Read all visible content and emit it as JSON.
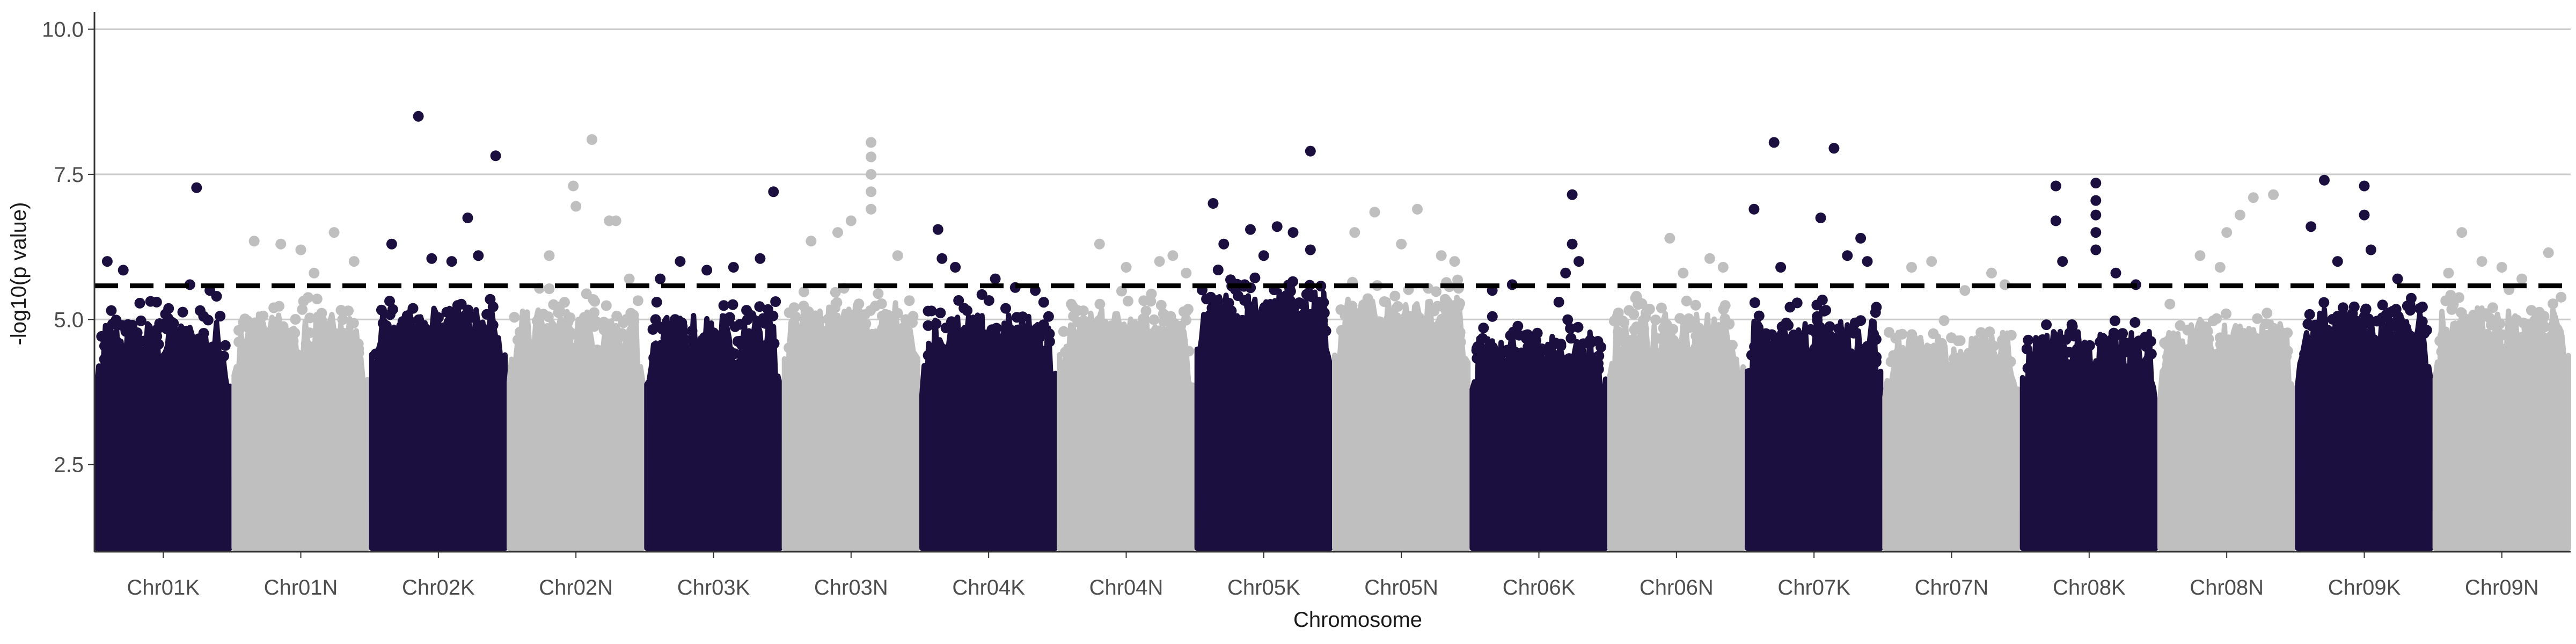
{
  "chart_data": {
    "type": "scatter",
    "subtype": "manhattan",
    "title": "",
    "xlabel": "Chromosome",
    "ylabel": "-log10(p value)",
    "ylim": [
      1.0,
      10.3
    ],
    "yticks": [
      2.5,
      5.0,
      7.5,
      10.0
    ],
    "ytick_labels": [
      "2.5",
      "5.0",
      "7.5",
      "10.0"
    ],
    "grid": "horizontal major lines",
    "legend": "none",
    "threshold": {
      "value": 5.58,
      "style": "dashed",
      "color": "#000000"
    },
    "colors": {
      "K": "#1b0f40",
      "N": "#bfbfbf"
    },
    "categories": [
      "Chr01K",
      "Chr01N",
      "Chr02K",
      "Chr02N",
      "Chr03K",
      "Chr03N",
      "Chr04K",
      "Chr04N",
      "Chr05K",
      "Chr05N",
      "Chr06K",
      "Chr06N",
      "Chr07K",
      "Chr07N",
      "Chr08K",
      "Chr08N",
      "Chr09K",
      "Chr09N"
    ],
    "chromosomes": [
      {
        "name": "Chr01K",
        "color": "#1b0f40",
        "bulk_top": 4.8,
        "notable_points": [
          {
            "x": 0.08,
            "y": 6.0
          },
          {
            "x": 0.2,
            "y": 5.85
          },
          {
            "x": 0.45,
            "y": 5.3
          },
          {
            "x": 0.7,
            "y": 5.6
          },
          {
            "x": 0.85,
            "y": 5.5
          },
          {
            "x": 0.75,
            "y": 7.27
          },
          {
            "x": 0.9,
            "y": 5.4
          }
        ]
      },
      {
        "name": "Chr01N",
        "color": "#bfbfbf",
        "bulk_top": 4.9,
        "notable_points": [
          {
            "x": 0.15,
            "y": 6.35
          },
          {
            "x": 0.35,
            "y": 6.3
          },
          {
            "x": 0.5,
            "y": 6.2
          },
          {
            "x": 0.75,
            "y": 6.5
          },
          {
            "x": 0.9,
            "y": 6.0
          },
          {
            "x": 0.6,
            "y": 5.8
          }
        ]
      },
      {
        "name": "Chr02K",
        "color": "#1b0f40",
        "bulk_top": 5.0,
        "notable_points": [
          {
            "x": 0.15,
            "y": 6.3
          },
          {
            "x": 0.35,
            "y": 8.5
          },
          {
            "x": 0.6,
            "y": 6.0
          },
          {
            "x": 0.72,
            "y": 6.75
          },
          {
            "x": 0.8,
            "y": 6.1
          },
          {
            "x": 0.93,
            "y": 7.82
          },
          {
            "x": 0.45,
            "y": 6.05
          }
        ]
      },
      {
        "name": "Chr02N",
        "color": "#bfbfbf",
        "bulk_top": 5.0,
        "notable_points": [
          {
            "x": 0.48,
            "y": 7.3
          },
          {
            "x": 0.5,
            "y": 6.95
          },
          {
            "x": 0.62,
            "y": 8.1
          },
          {
            "x": 0.75,
            "y": 6.7
          },
          {
            "x": 0.8,
            "y": 6.7
          },
          {
            "x": 0.3,
            "y": 6.1
          },
          {
            "x": 0.9,
            "y": 5.7
          }
        ]
      },
      {
        "name": "Chr03K",
        "color": "#1b0f40",
        "bulk_top": 4.9,
        "notable_points": [
          {
            "x": 0.25,
            "y": 6.0
          },
          {
            "x": 0.45,
            "y": 5.85
          },
          {
            "x": 0.65,
            "y": 5.9
          },
          {
            "x": 0.85,
            "y": 6.05
          },
          {
            "x": 0.95,
            "y": 7.2
          },
          {
            "x": 0.1,
            "y": 5.7
          }
        ]
      },
      {
        "name": "Chr03N",
        "color": "#bfbfbf",
        "bulk_top": 5.1,
        "notable_points": [
          {
            "x": 0.2,
            "y": 6.35
          },
          {
            "x": 0.4,
            "y": 6.5
          },
          {
            "x": 0.5,
            "y": 6.7
          },
          {
            "x": 0.65,
            "y": 8.05
          },
          {
            "x": 0.65,
            "y": 7.8
          },
          {
            "x": 0.65,
            "y": 7.5
          },
          {
            "x": 0.65,
            "y": 7.2
          },
          {
            "x": 0.65,
            "y": 6.9
          },
          {
            "x": 0.85,
            "y": 6.1
          }
        ]
      },
      {
        "name": "Chr04K",
        "color": "#1b0f40",
        "bulk_top": 4.9,
        "notable_points": [
          {
            "x": 0.12,
            "y": 6.55
          },
          {
            "x": 0.15,
            "y": 6.05
          },
          {
            "x": 0.25,
            "y": 5.9
          },
          {
            "x": 0.55,
            "y": 5.7
          },
          {
            "x": 0.7,
            "y": 5.55
          },
          {
            "x": 0.85,
            "y": 5.5
          }
        ]
      },
      {
        "name": "Chr04N",
        "color": "#bfbfbf",
        "bulk_top": 5.0,
        "notable_points": [
          {
            "x": 0.3,
            "y": 6.3
          },
          {
            "x": 0.5,
            "y": 5.9
          },
          {
            "x": 0.75,
            "y": 6.0
          },
          {
            "x": 0.85,
            "y": 6.1
          },
          {
            "x": 0.95,
            "y": 5.8
          }
        ]
      },
      {
        "name": "Chr05K",
        "color": "#1b0f40",
        "bulk_top": 5.3,
        "notable_points": [
          {
            "x": 0.12,
            "y": 7.0
          },
          {
            "x": 0.2,
            "y": 6.3
          },
          {
            "x": 0.4,
            "y": 6.55
          },
          {
            "x": 0.5,
            "y": 6.1
          },
          {
            "x": 0.72,
            "y": 6.5
          },
          {
            "x": 0.85,
            "y": 7.9
          },
          {
            "x": 0.85,
            "y": 6.2
          },
          {
            "x": 0.6,
            "y": 6.6
          }
        ]
      },
      {
        "name": "Chr05N",
        "color": "#bfbfbf",
        "bulk_top": 5.2,
        "notable_points": [
          {
            "x": 0.15,
            "y": 6.5
          },
          {
            "x": 0.3,
            "y": 6.85
          },
          {
            "x": 0.5,
            "y": 6.3
          },
          {
            "x": 0.62,
            "y": 6.9
          },
          {
            "x": 0.8,
            "y": 6.1
          },
          {
            "x": 0.9,
            "y": 6.0
          }
        ]
      },
      {
        "name": "Chr06K",
        "color": "#1b0f40",
        "bulk_top": 4.6,
        "notable_points": [
          {
            "x": 0.15,
            "y": 5.5
          },
          {
            "x": 0.3,
            "y": 5.6
          },
          {
            "x": 0.65,
            "y": 5.3
          },
          {
            "x": 0.75,
            "y": 7.15
          },
          {
            "x": 0.75,
            "y": 6.3
          },
          {
            "x": 0.8,
            "y": 6.0
          },
          {
            "x": 0.7,
            "y": 5.8
          }
        ]
      },
      {
        "name": "Chr06N",
        "color": "#bfbfbf",
        "bulk_top": 4.9,
        "notable_points": [
          {
            "x": 0.45,
            "y": 6.4
          },
          {
            "x": 0.55,
            "y": 5.8
          },
          {
            "x": 0.75,
            "y": 6.05
          },
          {
            "x": 0.85,
            "y": 5.9
          },
          {
            "x": 0.2,
            "y": 5.4
          }
        ]
      },
      {
        "name": "Chr07K",
        "color": "#1b0f40",
        "bulk_top": 4.8,
        "notable_points": [
          {
            "x": 0.05,
            "y": 6.9
          },
          {
            "x": 0.2,
            "y": 8.05
          },
          {
            "x": 0.25,
            "y": 5.9
          },
          {
            "x": 0.55,
            "y": 6.75
          },
          {
            "x": 0.65,
            "y": 7.95
          },
          {
            "x": 0.85,
            "y": 6.4
          },
          {
            "x": 0.9,
            "y": 6.0
          },
          {
            "x": 0.75,
            "y": 6.1
          }
        ]
      },
      {
        "name": "Chr07N",
        "color": "#bfbfbf",
        "bulk_top": 4.6,
        "notable_points": [
          {
            "x": 0.2,
            "y": 5.9
          },
          {
            "x": 0.35,
            "y": 6.0
          },
          {
            "x": 0.6,
            "y": 5.5
          },
          {
            "x": 0.8,
            "y": 5.8
          },
          {
            "x": 0.9,
            "y": 5.6
          }
        ]
      },
      {
        "name": "Chr08K",
        "color": "#1b0f40",
        "bulk_top": 4.6,
        "notable_points": [
          {
            "x": 0.25,
            "y": 7.3
          },
          {
            "x": 0.25,
            "y": 6.7
          },
          {
            "x": 0.3,
            "y": 6.0
          },
          {
            "x": 0.55,
            "y": 7.35
          },
          {
            "x": 0.55,
            "y": 7.05
          },
          {
            "x": 0.55,
            "y": 6.8
          },
          {
            "x": 0.55,
            "y": 6.5
          },
          {
            "x": 0.55,
            "y": 6.2
          },
          {
            "x": 0.7,
            "y": 5.8
          },
          {
            "x": 0.85,
            "y": 5.6
          }
        ]
      },
      {
        "name": "Chr08N",
        "color": "#bfbfbf",
        "bulk_top": 4.8,
        "notable_points": [
          {
            "x": 0.3,
            "y": 6.1
          },
          {
            "x": 0.5,
            "y": 6.5
          },
          {
            "x": 0.6,
            "y": 6.8
          },
          {
            "x": 0.7,
            "y": 7.1
          },
          {
            "x": 0.85,
            "y": 7.15
          },
          {
            "x": 0.45,
            "y": 5.9
          }
        ]
      },
      {
        "name": "Chr09K",
        "color": "#1b0f40",
        "bulk_top": 5.0,
        "notable_points": [
          {
            "x": 0.1,
            "y": 6.6
          },
          {
            "x": 0.2,
            "y": 7.4
          },
          {
            "x": 0.5,
            "y": 7.3
          },
          {
            "x": 0.5,
            "y": 6.8
          },
          {
            "x": 0.55,
            "y": 6.2
          },
          {
            "x": 0.3,
            "y": 6.0
          },
          {
            "x": 0.75,
            "y": 5.7
          }
        ]
      },
      {
        "name": "Chr09N",
        "color": "#bfbfbf",
        "bulk_top": 5.0,
        "notable_points": [
          {
            "x": 0.2,
            "y": 6.5
          },
          {
            "x": 0.35,
            "y": 6.0
          },
          {
            "x": 0.5,
            "y": 5.9
          },
          {
            "x": 0.65,
            "y": 5.7
          },
          {
            "x": 0.85,
            "y": 6.15
          },
          {
            "x": 0.1,
            "y": 5.8
          }
        ]
      }
    ]
  }
}
